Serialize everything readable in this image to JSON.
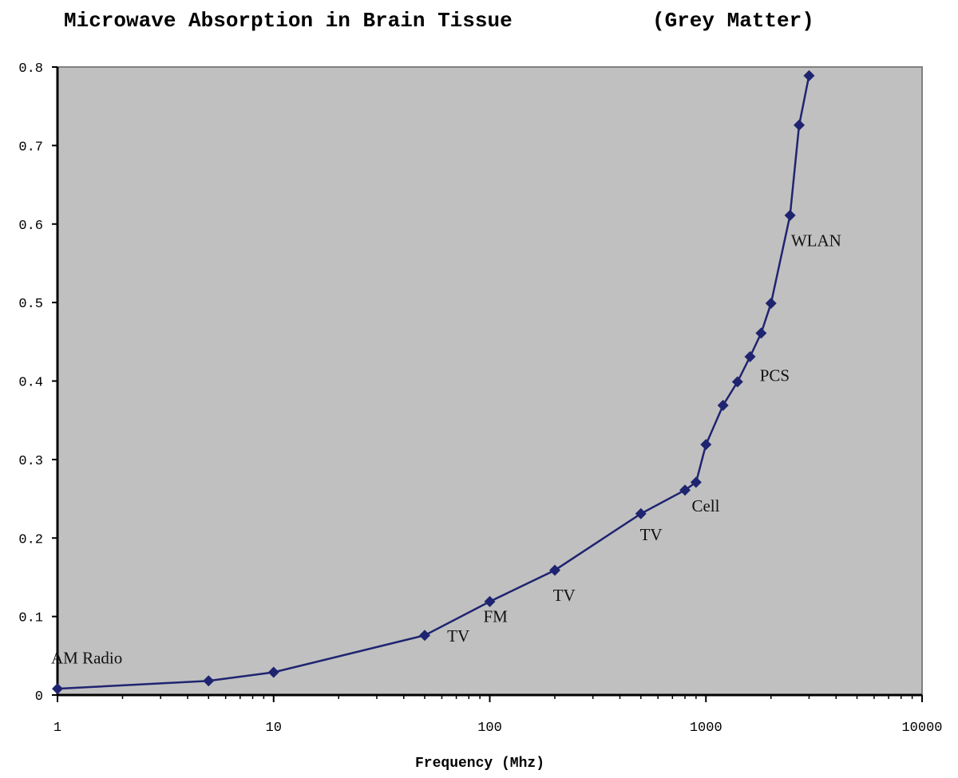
{
  "chart_data": {
    "type": "line",
    "title": "Microwave Absorption in Brain Tissue",
    "subtitle": "(Grey Matter)",
    "xlabel": "Frequency (Mhz)",
    "ylabel": "",
    "x_scale": "log",
    "xlim": [
      1,
      10000
    ],
    "ylim": [
      0,
      0.8
    ],
    "x_ticks": [
      1,
      10,
      100,
      1000,
      10000
    ],
    "x_tick_labels": [
      "1",
      "10",
      "100",
      "1000",
      "10000"
    ],
    "y_ticks": [
      0,
      0.1,
      0.2,
      0.3,
      0.4,
      0.5,
      0.6,
      0.7,
      0.8
    ],
    "y_tick_labels": [
      "0",
      "0.1",
      "0.2",
      "0.3",
      "0.4",
      "0.5",
      "0.6",
      "0.7",
      "0.8"
    ],
    "grid": false,
    "legend": "none",
    "series": [
      {
        "x": [
          1,
          5,
          10,
          50,
          100,
          200,
          500,
          800,
          900,
          1000,
          1200,
          1400,
          1600,
          1800,
          2000,
          2450,
          2700,
          3000
        ],
        "y": [
          0.008,
          0.018,
          0.029,
          0.076,
          0.119,
          0.159,
          0.231,
          0.261,
          0.271,
          0.319,
          0.369,
          0.399,
          0.431,
          0.461,
          0.499,
          0.611,
          0.726,
          0.789
        ]
      }
    ],
    "annotations": [
      {
        "text": "AM Radio",
        "x": 1,
        "y": 0.04
      },
      {
        "text": "TV",
        "x": 68,
        "y": 0.068
      },
      {
        "text": "FM",
        "x": 100,
        "y": 0.093
      },
      {
        "text": "TV",
        "x": 210,
        "y": 0.12
      },
      {
        "text": "TV",
        "x": 530,
        "y": 0.197
      },
      {
        "text": "Cell",
        "x": 920,
        "y": 0.234
      },
      {
        "text": "PCS",
        "x": 1900,
        "y": 0.4
      },
      {
        "text": "WLAN",
        "x": 2650,
        "y": 0.572
      }
    ]
  },
  "colors": {
    "plot_background": "#c0c0c0",
    "series_line": "#1f2470",
    "axis": "#000000",
    "plot_border": "#808080"
  }
}
